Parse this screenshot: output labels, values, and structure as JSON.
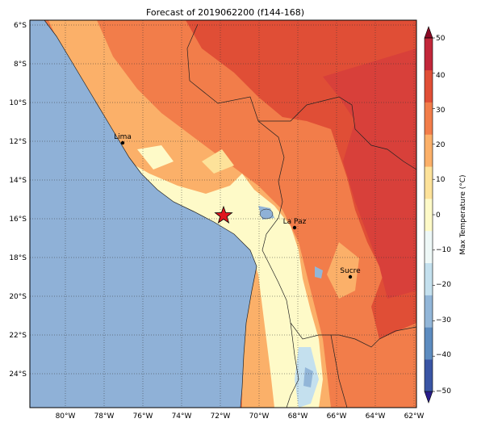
{
  "title": "Forecast of 2019062200 (f144-168)",
  "colorbar": {
    "label": "Max Temperature (°C)",
    "ticks": [
      "50",
      "40",
      "30",
      "20",
      "10",
      "0",
      "−10",
      "−20",
      "−30",
      "−40",
      "−50"
    ],
    "colors": [
      "#2a1d8c",
      "#3a55a5",
      "#5d8cc0",
      "#92b6d8",
      "#c4e0ee",
      "#eef8f7",
      "#fefac8",
      "#fde29a",
      "#fbb069",
      "#f27d4a",
      "#e04e36",
      "#c2273a",
      "#8b0a26"
    ]
  },
  "map": {
    "lat_labels": [
      "6°S",
      "8°S",
      "10°S",
      "12°S",
      "14°S",
      "16°S",
      "18°S",
      "20°S",
      "22°S",
      "24°S"
    ],
    "lon_labels": [
      "80°W",
      "78°W",
      "76°W",
      "74°W",
      "72°W",
      "70°W",
      "68°W",
      "66°W",
      "64°W",
      "62°W"
    ],
    "ocean_color": "#8fb1d7",
    "cities": [
      {
        "name": "Lima"
      },
      {
        "name": "La Paz"
      },
      {
        "name": "Sucre"
      }
    ],
    "marker": {
      "symbol": "star",
      "color": "#e0161e"
    }
  }
}
